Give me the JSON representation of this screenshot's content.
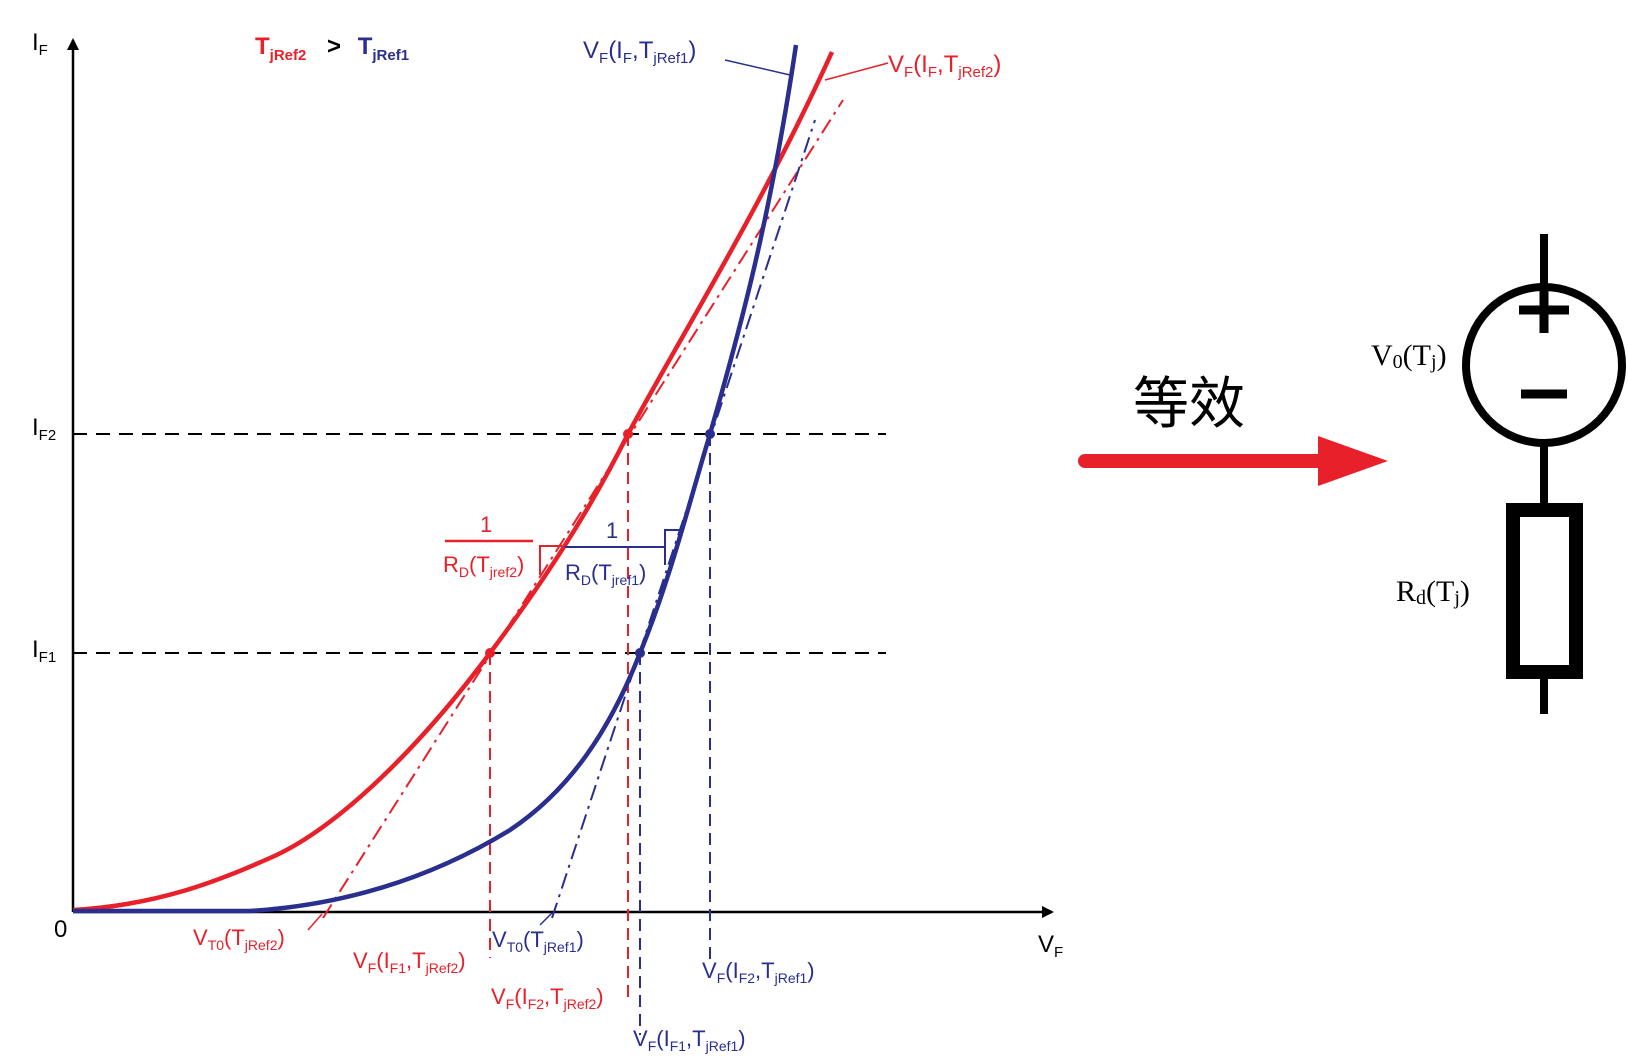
{
  "colors": {
    "red": "#e8202a",
    "blue": "#2a2e8e",
    "black": "#000000"
  },
  "axes": {
    "y_main": "I",
    "y_sub": "F",
    "x_main": "V",
    "x_sub": "F",
    "origin": "0"
  },
  "ticks": {
    "if2_main": "I",
    "if2_sub": "F2",
    "if1_main": "I",
    "if1_sub": "F1"
  },
  "legend": {
    "t2_main": "T",
    "t2_sub": "jRef2",
    "gt": ">",
    "t1_main": "T",
    "t1_sub": "jRef1"
  },
  "curve_labels": {
    "blue": {
      "p1": "V",
      "p2": "F",
      "p3": "(I",
      "p4": "F",
      "p5": ",T",
      "p6": "jRef1",
      "p7": ")"
    },
    "red": {
      "p1": "V",
      "p2": "F",
      "p3": "(I",
      "p4": "F",
      "p5": ",T",
      "p6": "jRef2",
      "p7": ")"
    }
  },
  "slopes": {
    "red": {
      "num": "1",
      "d1": "R",
      "d2": "D",
      "d3": "(T",
      "d4": "jref2",
      "d5": ")"
    },
    "blue": {
      "num": "1",
      "d1": "R",
      "d2": "D",
      "d3": "(T",
      "d4": "jref1",
      "d5": ")"
    }
  },
  "x_labels": {
    "vt0_red": {
      "p1": "V",
      "p2": "T0",
      "p3": "(T",
      "p4": "jRef2",
      "p5": ")"
    },
    "vt0_blue": {
      "p1": "V",
      "p2": "T0",
      "p3": "(T",
      "p4": "jRef1",
      "p5": ")"
    },
    "vf_if1_red": {
      "p1": "V",
      "p2": "F",
      "p3": "(I",
      "p4": "F1",
      "p5": ",T",
      "p6": "jRef2",
      "p7": ")"
    },
    "vf_if2_red": {
      "p1": "V",
      "p2": "F",
      "p3": "(I",
      "p4": "F2",
      "p5": ",T",
      "p6": "jRef2",
      "p7": ")"
    },
    "vf_if2_blue": {
      "p1": "V",
      "p2": "F",
      "p3": "(I",
      "p4": "F2",
      "p5": ",T",
      "p6": "jRef1",
      "p7": ")"
    },
    "vf_if1_blue": {
      "p1": "V",
      "p2": "F",
      "p3": "(I",
      "p4": "F1",
      "p5": ",T",
      "p6": "jRef1",
      "p7": ")"
    }
  },
  "equivalence": {
    "label": "等效"
  },
  "circuit": {
    "source_main": "V",
    "source_sub": "0",
    "source_rest": "(T",
    "source_j": "j",
    "source_end": ")",
    "resistor_main": "R",
    "resistor_sub": "d",
    "resistor_rest": "(T",
    "resistor_j": "j",
    "resistor_end": ")",
    "plus_sign": "+",
    "minus_sign": "−"
  }
}
